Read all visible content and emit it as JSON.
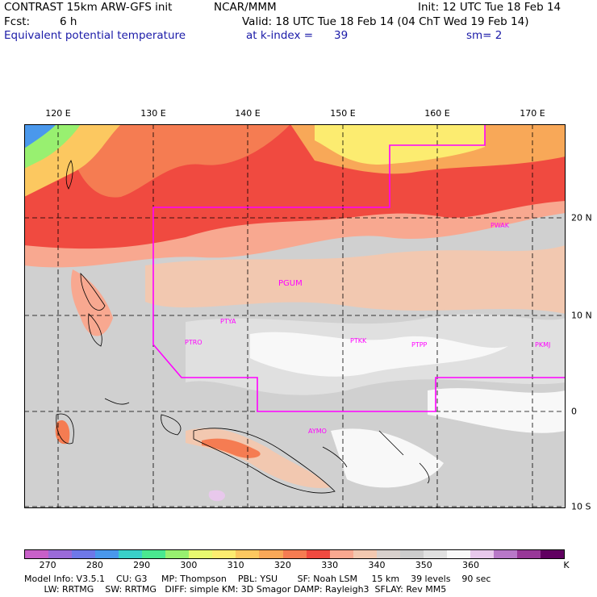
{
  "header": {
    "model_line": "CONTRAST 15km ARW-GFS init",
    "org": "NCAR/MMM",
    "init": "Init: 12 UTC Tue 18 Feb 14",
    "fcst_label": "Fcst:",
    "fcst_value": "6 h",
    "valid": "Valid: 18 UTC Tue 18 Feb 14 (04 ChT Wed 19 Feb 14)",
    "field_name": "Equivalent potential temperature",
    "level": "at k-index =",
    "level_value": "39",
    "smoothing": "sm= 2"
  },
  "map": {
    "lon_labels": [
      "120 E",
      "130 E",
      "140 E",
      "150 E",
      "160 E",
      "170 E"
    ],
    "lat_labels": [
      "20 N",
      "10 N",
      "0",
      "10 S"
    ],
    "stations": [
      "PWAK",
      "PGUM",
      "PTYA",
      "PTRO",
      "PTKK",
      "PTPP",
      "PKMJ",
      "AYMO"
    ],
    "domain_color": "#ff00ff"
  },
  "colorbar": {
    "labels": [
      "270",
      "280",
      "290",
      "300",
      "310",
      "320",
      "330",
      "340",
      "350",
      "360"
    ],
    "unit": "K",
    "colors": [
      "#c860c8",
      "#9a6ad8",
      "#6e78e8",
      "#4a98ec",
      "#3ad0c8",
      "#4ae890",
      "#98f070",
      "#e8f870",
      "#fcec70",
      "#fcc860",
      "#f8a858",
      "#f57c52",
      "#f04a40",
      "#f8a890",
      "#f2c8b0",
      "#d8d0cc",
      "#cccccc",
      "#e0e0e0",
      "#f8f8f8",
      "#e8c8ec",
      "#b878c8",
      "#983898",
      "#600060"
    ]
  },
  "footer": {
    "line1": "Model Info: V3.5.1    CU: G3     MP: Thompson    PBL: YSU       SF: Noah LSM     15 km    39 levels    90 sec",
    "line2": "       LW: RRTMG    SW: RRTMG   DIFF: simple KM: 3D Smagor DAMP: Rayleigh3  SFLAY: Rev MM5"
  }
}
